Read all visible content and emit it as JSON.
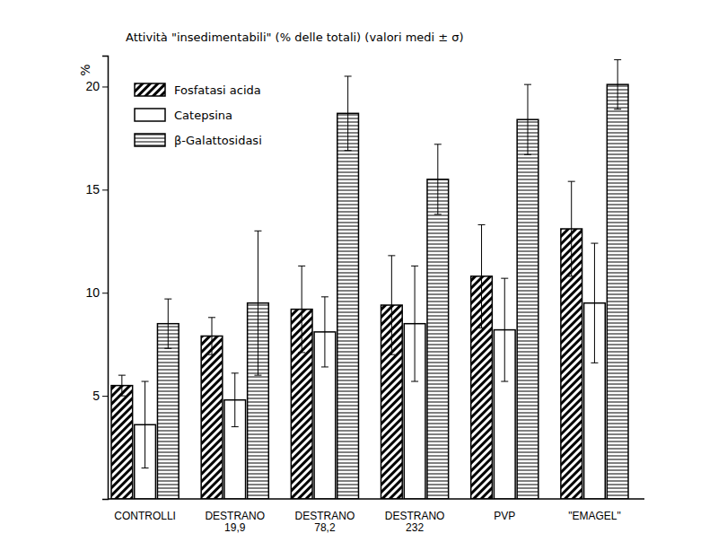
{
  "chart_data": {
    "type": "bar",
    "title": "Attività \"insedimentabili\" (% delle totali) (valori medi ± σ)",
    "y_label": "%",
    "categories": [
      "CONTROLLI",
      "DESTRANO\n19,9",
      "DESTRANO\n78,2",
      "DESTRANO\n232",
      "PVP",
      "\"EMAGEL\""
    ],
    "series": [
      {
        "name": "Fosfatasi acida",
        "color": "#000000",
        "values": [
          5.5,
          7.9,
          9.2,
          9.4,
          10.8,
          13.1
        ],
        "errors": [
          0.5,
          0.9,
          2.1,
          2.4,
          2.5,
          2.3
        ]
      },
      {
        "name": "Catepsina",
        "color": "#000000",
        "values": [
          3.6,
          4.8,
          8.1,
          8.5,
          8.2,
          9.5
        ],
        "errors": [
          2.1,
          1.3,
          1.7,
          2.8,
          2.5,
          2.9
        ]
      },
      {
        "name": "β-Galattosidasi",
        "color": "#000000",
        "values": [
          8.5,
          9.5,
          18.7,
          15.5,
          18.4,
          20.1
        ],
        "errors": [
          1.2,
          3.5,
          1.8,
          1.7,
          1.7,
          1.2
        ]
      }
    ],
    "ylim": [
      0,
      21.5
    ],
    "yticks": [
      5,
      10,
      15,
      20
    ],
    "legend": "upper left",
    "grid": false
  }
}
